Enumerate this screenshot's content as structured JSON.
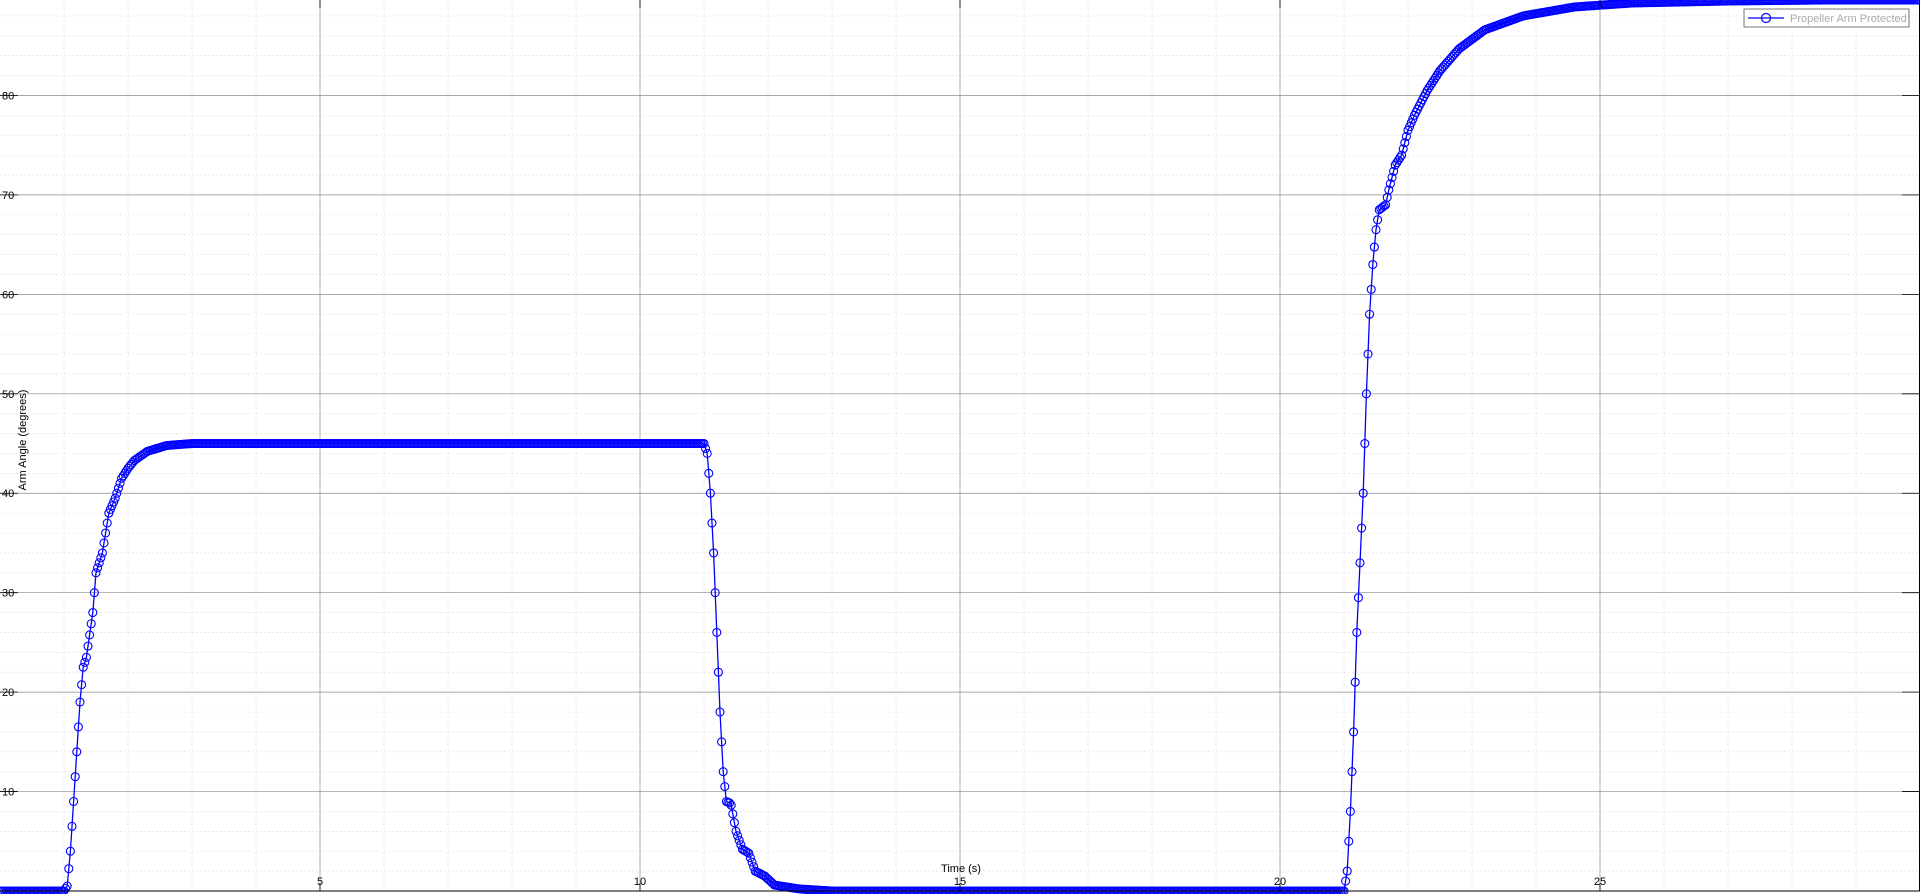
{
  "chart_data": {
    "type": "line",
    "title": "",
    "xlabel": "Time (s)",
    "ylabel": "Arm Angle (degrees)",
    "xlim": [
      0,
      30
    ],
    "ylim": [
      0,
      89.6
    ],
    "xticks": [
      5,
      10,
      15,
      20,
      25
    ],
    "yticks": [
      10,
      20,
      30,
      40,
      50,
      60,
      70,
      80
    ],
    "xtick_labels": [
      "5",
      "10",
      "15",
      "20",
      "25"
    ],
    "ytick_labels": [
      "10",
      "20",
      "30",
      "40",
      "50",
      "60",
      "70",
      "80"
    ],
    "grid": true,
    "minor_grid": true,
    "legend_position": "top-right",
    "series": [
      {
        "name": "Propeller Arm Protected",
        "color": "#0000ff",
        "marker": "circle",
        "points": [
          [
            0,
            0
          ],
          [
            1.0,
            0
          ],
          [
            1.05,
            0.5
          ],
          [
            1.1,
            4
          ],
          [
            1.15,
            9
          ],
          [
            1.2,
            14
          ],
          [
            1.25,
            19
          ],
          [
            1.3,
            22.5
          ],
          [
            1.35,
            23.5
          ],
          [
            1.45,
            28
          ],
          [
            1.5,
            32
          ],
          [
            1.6,
            34
          ],
          [
            1.7,
            38
          ],
          [
            1.8,
            39.5
          ],
          [
            1.9,
            41.5
          ],
          [
            2.0,
            42.5
          ],
          [
            2.1,
            43.3
          ],
          [
            2.3,
            44.2
          ],
          [
            2.6,
            44.8
          ],
          [
            3.0,
            45
          ],
          [
            5.0,
            45
          ],
          [
            8.0,
            45
          ],
          [
            10.5,
            45
          ],
          [
            11.0,
            45
          ],
          [
            11.05,
            44
          ],
          [
            11.1,
            40
          ],
          [
            11.15,
            34
          ],
          [
            11.2,
            26
          ],
          [
            11.25,
            18
          ],
          [
            11.3,
            12
          ],
          [
            11.35,
            9
          ],
          [
            11.42,
            8.8
          ],
          [
            11.5,
            6
          ],
          [
            11.6,
            4.2
          ],
          [
            11.7,
            3.8
          ],
          [
            11.8,
            2
          ],
          [
            11.95,
            1.5
          ],
          [
            12.1,
            0.6
          ],
          [
            12.5,
            0.2
          ],
          [
            13.0,
            0
          ],
          [
            21.0,
            0
          ],
          [
            21.05,
            2
          ],
          [
            21.1,
            8
          ],
          [
            21.15,
            16
          ],
          [
            21.2,
            26
          ],
          [
            21.3,
            40
          ],
          [
            21.35,
            50
          ],
          [
            21.4,
            58
          ],
          [
            21.45,
            63
          ],
          [
            21.5,
            66.5
          ],
          [
            21.55,
            68.5
          ],
          [
            21.65,
            69
          ],
          [
            21.7,
            70.5
          ],
          [
            21.8,
            73
          ],
          [
            21.9,
            74
          ],
          [
            22.0,
            76.5
          ],
          [
            22.1,
            78
          ],
          [
            22.3,
            80.5
          ],
          [
            22.5,
            82.5
          ],
          [
            22.8,
            84.7
          ],
          [
            23.2,
            86.6
          ],
          [
            23.8,
            88
          ],
          [
            24.6,
            88.9
          ],
          [
            25.5,
            89.3
          ],
          [
            27,
            89.5
          ],
          [
            28.5,
            89.6
          ],
          [
            30,
            89.6
          ]
        ]
      }
    ]
  }
}
